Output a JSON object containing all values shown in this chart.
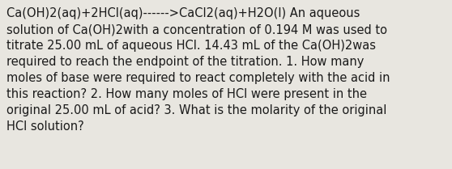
{
  "text": "Ca(OH)2(aq)+2HCl(aq)------>CaCl2(aq)+H2O(l) An aqueous\nsolution of Ca(OH)2with a concentration of 0.194 M was used to\ntitrate 25.00 mL of aqueous HCl. 14.43 mL of the Ca(OH)2was\nrequired to reach the endpoint of the titration. 1. How many\nmoles of base were required to react completely with the acid in\nthis reaction? 2. How many moles of HCl were present in the\noriginal 25.00 mL of acid? 3. What is the molarity of the original\nHCl solution?",
  "background_color": "#e8e6e0",
  "text_color": "#1a1a1a",
  "font_size": 10.5,
  "fig_width": 5.58,
  "fig_height": 2.09,
  "dpi": 100
}
